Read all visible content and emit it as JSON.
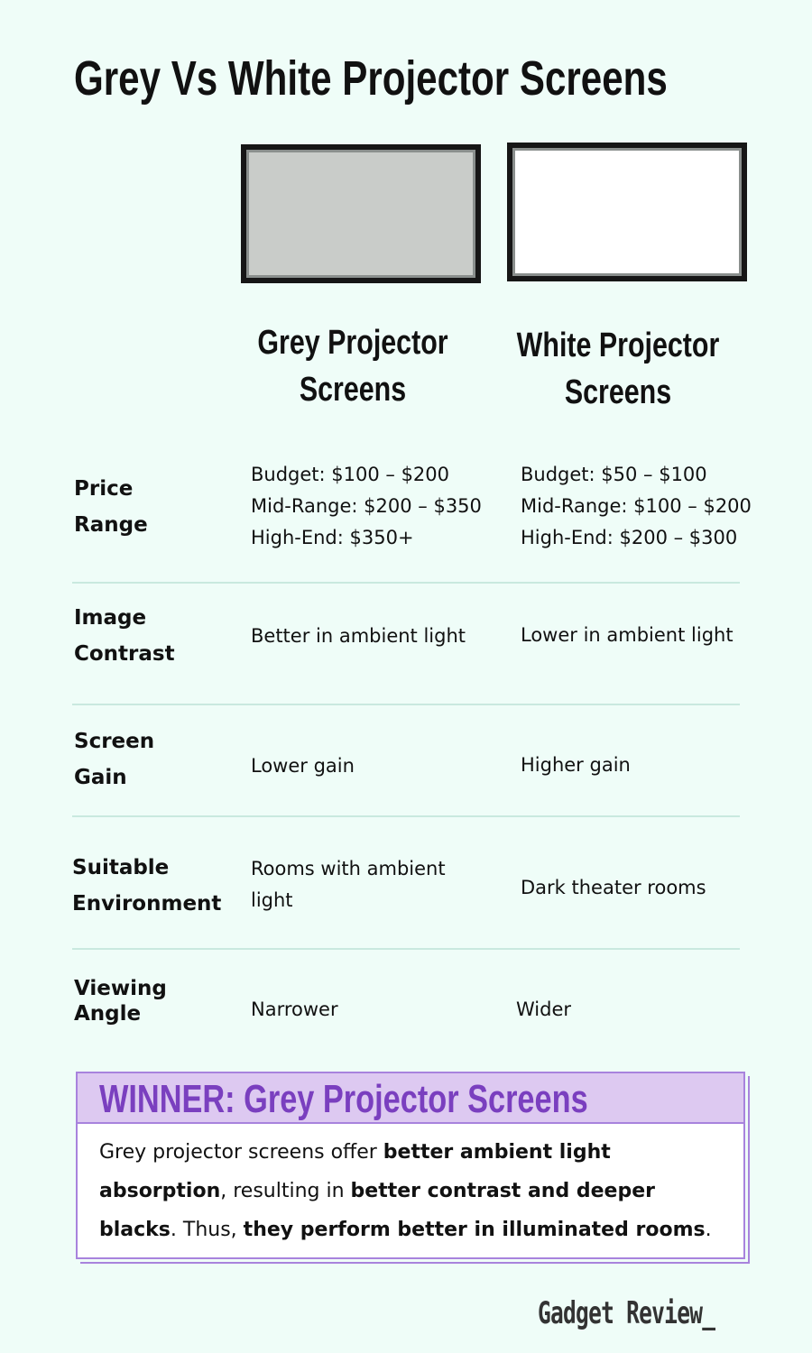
{
  "title": "Grey Vs White Projector Screens",
  "columns": [
    {
      "heading": "Grey Projector Screens",
      "screen_color": "#c9ccc9"
    },
    {
      "heading": "White Projector Screens",
      "screen_color": "#ffffff"
    }
  ],
  "rows": [
    {
      "label": "Price Range",
      "grey": [
        "Budget: $100 – $200",
        "Mid-Range: $200 – $350",
        "High-End: $350+"
      ],
      "white": [
        "Budget: $50 – $100",
        "Mid-Range: $100 – $200",
        "High-End: $200 – $300"
      ]
    },
    {
      "label": "Image Contrast",
      "grey": "Better in ambient light",
      "white": "Lower in ambient light"
    },
    {
      "label": "Screen Gain",
      "grey": "Lower gain",
      "white": "Higher gain"
    },
    {
      "label": "Suitable Environment",
      "grey": "Rooms with ambient light",
      "white": "Dark theater rooms"
    },
    {
      "label": "Viewing Angle",
      "grey": "Narrower",
      "white": "Wider"
    }
  ],
  "winner": {
    "title": "WINNER: Grey Projector Screens",
    "text_parts": [
      "Grey projector screens offer ",
      "better ambient light absorption",
      ", resulting in ",
      "better contrast and deeper blacks",
      ". Thus, ",
      "they perform better in illuminated rooms",
      "."
    ]
  },
  "brand": "Gadget Review_",
  "colors": {
    "background": "#effdf8",
    "accent": "#7a3fbf",
    "winner_header": "#ddc9f1"
  }
}
